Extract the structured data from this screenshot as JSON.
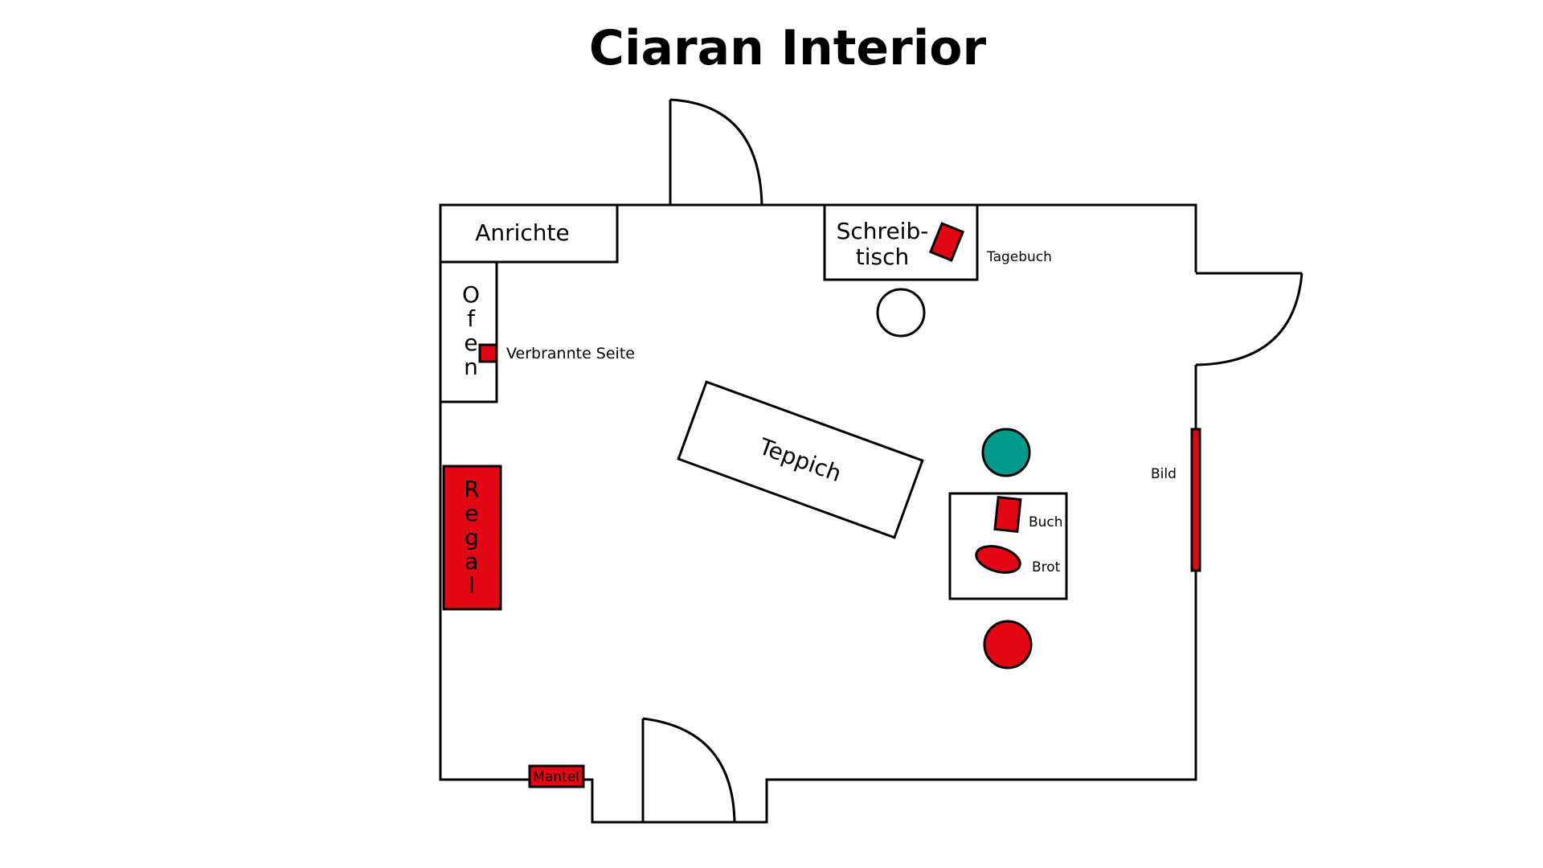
{
  "title": "Ciaran Interior",
  "colors": {
    "accent_red": "#e30613",
    "teal": "#009a8d",
    "line": "#000000",
    "background": "#ffffff"
  },
  "furniture": {
    "anrichte": "Anrichte",
    "ofen": [
      "O",
      "f",
      "e",
      "n"
    ],
    "regal": [
      "R",
      "e",
      "g",
      "a",
      "l"
    ],
    "schreibtisch": [
      "Schreib-",
      "tisch"
    ],
    "teppich": "Teppich"
  },
  "clues": {
    "verbrannte_seite": "Verbrannte Seite",
    "tagebuch": "Tagebuch",
    "buch": "Buch",
    "brot": "Brot",
    "bild": "Bild",
    "mantel": "Mantel"
  }
}
